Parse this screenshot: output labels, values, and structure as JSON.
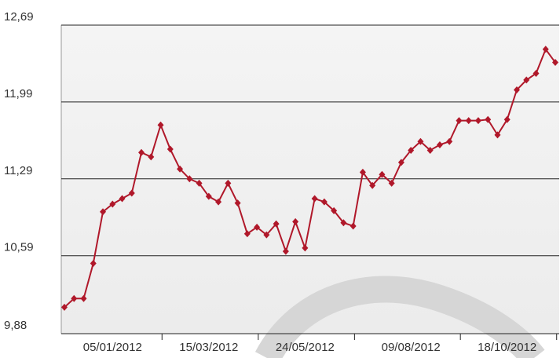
{
  "chart_data": {
    "type": "line",
    "categories": [
      null,
      null,
      null,
      null,
      null,
      "05/01/2012",
      null,
      null,
      null,
      null,
      null,
      null,
      null,
      null,
      null,
      "15/03/2012",
      null,
      null,
      null,
      null,
      null,
      null,
      null,
      null,
      null,
      "24/05/2012",
      null,
      null,
      null,
      null,
      null,
      null,
      null,
      null,
      null,
      null,
      "09/08/2012",
      null,
      null,
      null,
      null,
      null,
      null,
      null,
      null,
      null,
      "18/10/2012",
      null,
      null,
      null,
      null,
      null
    ],
    "series": [
      {
        "name": null,
        "color": "#b0182a",
        "values": [
          10.12,
          10.2,
          10.2,
          10.52,
          10.99,
          11.06,
          11.11,
          11.16,
          11.53,
          11.49,
          11.78,
          11.56,
          11.38,
          11.29,
          11.25,
          11.13,
          11.08,
          11.25,
          11.07,
          10.79,
          10.85,
          10.78,
          10.88,
          10.63,
          10.9,
          10.66,
          11.11,
          11.08,
          11.0,
          10.89,
          10.86,
          11.35,
          11.23,
          11.33,
          11.25,
          11.44,
          11.55,
          11.63,
          11.55,
          11.6,
          11.63,
          11.82,
          11.82,
          11.82,
          11.83,
          11.69,
          11.83,
          12.1,
          12.19,
          12.25,
          12.47,
          12.35
        ]
      }
    ],
    "ylim": [
      9.88,
      12.69
    ],
    "yticks": [
      {
        "value": 9.88,
        "label": "9,88"
      },
      {
        "value": 10.59,
        "label": "10,59"
      },
      {
        "value": 11.29,
        "label": "11,29"
      },
      {
        "value": 11.99,
        "label": "11,99"
      },
      {
        "value": 12.69,
        "label": "12,69"
      }
    ],
    "grid": true
  }
}
